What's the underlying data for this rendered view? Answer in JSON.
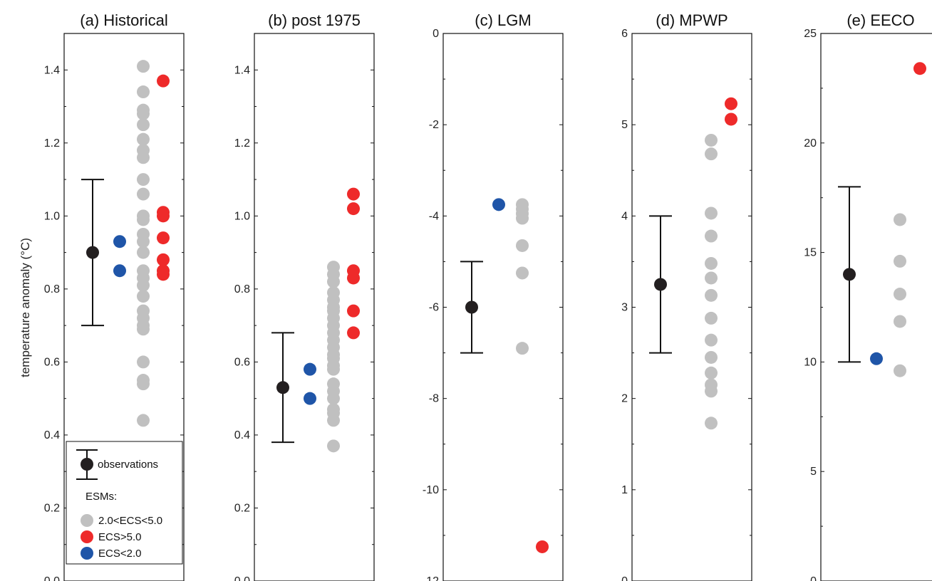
{
  "figure": {
    "ylabel": "temperature anomaly (°C)",
    "colors": {
      "observations": "#231f20",
      "mid_ecs": "#c0c0c0",
      "high_ecs": "#ee2a2a",
      "low_ecs": "#1f55a8"
    }
  },
  "legend": {
    "observations": "observations",
    "header": "ESMs:",
    "mid": "2.0<ECS<5.0",
    "high": "ECS>5.0",
    "low": "ECS<2.0"
  },
  "chart_data": [
    {
      "type": "scatter",
      "title": "(a) Historical",
      "ylim": [
        0.0,
        1.5
      ],
      "yticks": [
        0.0,
        0.2,
        0.4,
        0.6,
        0.8,
        1.0,
        1.2,
        1.4
      ],
      "tick_labels": [
        "0.0",
        "0.2",
        "0.4",
        "0.6",
        "0.8",
        "1.0",
        "1.2",
        "1.4"
      ],
      "observations": {
        "value": 0.9,
        "low": 0.7,
        "high": 1.1
      },
      "series": [
        {
          "values": [
            0.93,
            0.85
          ]
        },
        {
          "values": [
            1.41,
            1.34,
            1.29,
            1.28,
            1.25,
            1.21,
            1.18,
            1.16,
            1.1,
            1.06,
            1.0,
            0.99,
            0.95,
            0.93,
            0.9,
            0.85,
            0.83,
            0.81,
            0.78,
            0.74,
            0.72,
            0.7,
            0.69,
            0.6,
            0.55,
            0.54,
            0.44
          ]
        },
        {
          "values": [
            1.37,
            1.01,
            1.0,
            0.94,
            0.88,
            0.85,
            0.84
          ]
        }
      ]
    },
    {
      "type": "scatter",
      "title": "(b) post 1975",
      "ylim": [
        0.0,
        1.5
      ],
      "yticks": [
        0.0,
        0.2,
        0.4,
        0.6,
        0.8,
        1.0,
        1.2,
        1.4
      ],
      "tick_labels": [
        "0.0",
        "0.2",
        "0.4",
        "0.6",
        "0.8",
        "1.0",
        "1.2",
        "1.4"
      ],
      "observations": {
        "value": 0.53,
        "low": 0.38,
        "high": 0.68
      },
      "series": [
        {
          "values": [
            0.58,
            0.5
          ]
        },
        {
          "values": [
            0.86,
            0.84,
            0.82,
            0.79,
            0.77,
            0.75,
            0.74,
            0.72,
            0.7,
            0.68,
            0.66,
            0.64,
            0.62,
            0.61,
            0.59,
            0.58,
            0.54,
            0.52,
            0.5,
            0.47,
            0.46,
            0.44,
            0.37
          ]
        },
        {
          "values": [
            1.06,
            1.02,
            0.85,
            0.83,
            0.74,
            0.68
          ]
        }
      ]
    },
    {
      "type": "scatter",
      "title": "(c) LGM",
      "ylim": [
        -12,
        0
      ],
      "yticks": [
        -12,
        -10,
        -8,
        -6,
        -4,
        -2,
        0
      ],
      "tick_labels": [
        "-12",
        "-10",
        "-8",
        "-6",
        "-4",
        "-2",
        "0"
      ],
      "observations": {
        "value": -6.0,
        "low": -7.0,
        "high": -5.0
      },
      "series": [
        {
          "values": [
            -3.75
          ]
        },
        {
          "values": [
            -3.75,
            -3.85,
            -3.95,
            -4.05,
            -4.65,
            -5.25,
            -6.9
          ]
        },
        {
          "values": [
            -11.25
          ]
        }
      ]
    },
    {
      "type": "scatter",
      "title": "(d) MPWP",
      "ylim": [
        0,
        6
      ],
      "yticks": [
        0,
        1,
        2,
        3,
        4,
        5,
        6
      ],
      "tick_labels": [
        "0",
        "1",
        "2",
        "3",
        "4",
        "5",
        "6"
      ],
      "observations": {
        "value": 3.25,
        "low": 2.5,
        "high": 4.0
      },
      "series": [
        {
          "values": []
        },
        {
          "values": [
            4.83,
            4.68,
            4.03,
            3.78,
            3.48,
            3.32,
            3.13,
            2.88,
            2.64,
            2.45,
            2.28,
            2.15,
            2.08,
            1.73
          ]
        },
        {
          "values": [
            5.23,
            5.06
          ]
        }
      ]
    },
    {
      "type": "scatter",
      "title": "(e) EECO",
      "ylim": [
        0,
        25
      ],
      "yticks": [
        0,
        5,
        10,
        15,
        20,
        25
      ],
      "tick_labels": [
        "0",
        "5",
        "10",
        "15",
        "20",
        "25"
      ],
      "observations": {
        "value": 14.0,
        "low": 10.0,
        "high": 18.0
      },
      "series": [
        {
          "values": [
            10.15
          ]
        },
        {
          "values": [
            16.5,
            14.6,
            13.1,
            11.85,
            9.6
          ]
        },
        {
          "values": [
            23.4
          ]
        }
      ]
    }
  ]
}
